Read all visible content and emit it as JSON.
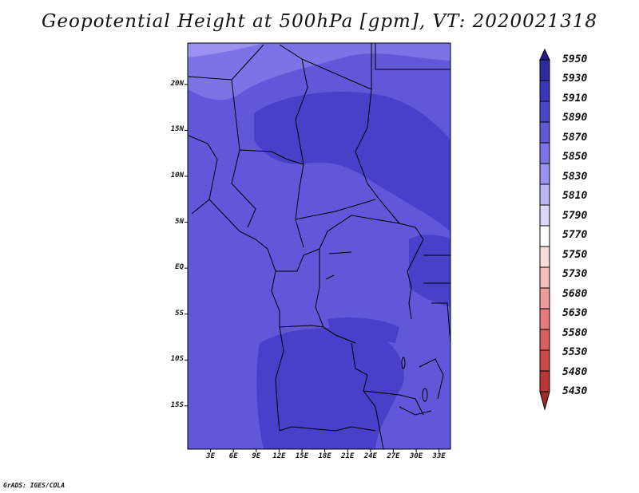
{
  "title": "Geopotential Height at 500hPa [gpm], VT: 2020021318",
  "footer": "GrADS: IGES/COLA",
  "map": {
    "lat_labels": [
      "20N",
      "15N",
      "10N",
      "5N",
      "EQ",
      "5S",
      "10S",
      "15S"
    ],
    "lat_values": [
      20,
      15,
      10,
      5,
      0,
      -5,
      -10,
      -15
    ],
    "lon_labels": [
      "3E",
      "6E",
      "9E",
      "12E",
      "15E",
      "18E",
      "21E",
      "24E",
      "27E",
      "30E",
      "33E"
    ],
    "lon_values": [
      3,
      6,
      9,
      12,
      15,
      18,
      21,
      24,
      27,
      30,
      33
    ],
    "lon_range": [
      0,
      34.5
    ],
    "lat_range": [
      -19.7,
      24.5
    ]
  },
  "colorbar": {
    "levels": [
      "5950",
      "5930",
      "5910",
      "5890",
      "5870",
      "5850",
      "5830",
      "5810",
      "5790",
      "5770",
      "5750",
      "5730",
      "5680",
      "5630",
      "5580",
      "5530",
      "5480",
      "5430"
    ],
    "colors": [
      "#2a1a8c",
      "#2e2aa0",
      "#3a38b8",
      "#4a48c8",
      "#5f5ad8",
      "#7b73e6",
      "#9a92f0",
      "#bcb6f6",
      "#dcd8fb",
      "#ffffff",
      "#fbdcdc",
      "#f6bcbc",
      "#f09a9a",
      "#e67b7b",
      "#d85f5f",
      "#c84848",
      "#b83838",
      "#a02a2a"
    ]
  },
  "field_colors": {
    "c5850": "#7b73e6",
    "c5870": "#6058d8",
    "c5890": "#4840c8",
    "c5830": "#9a92f0"
  }
}
